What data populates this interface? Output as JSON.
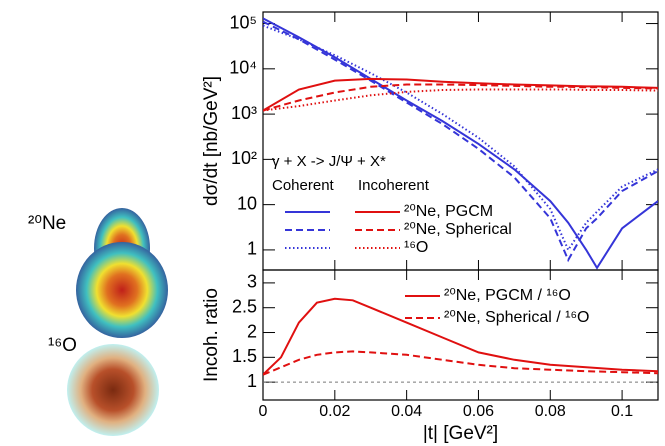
{
  "images": [
    "²⁰Ne",
    "¹⁶O"
  ],
  "chart_data": [
    {
      "type": "line",
      "ylabel": "dσ/dt [nb/GeV²]",
      "yscale": "log",
      "annotations": [
        "γ + X -> J/Ψ + X*"
      ],
      "legend_headers": [
        "Coherent",
        "Incoherent"
      ],
      "xlim": [
        0,
        0.11
      ],
      "xticks": [
        0,
        0.02,
        0.04,
        0.06,
        0.08,
        0.1
      ],
      "show_xtick_labels": false,
      "ylim": [
        0.36,
        180000
      ],
      "yticks": [
        1,
        10,
        {
          "value": 100,
          "label": "10²"
        },
        {
          "value": 1000,
          "label": "10³"
        },
        {
          "value": 10000,
          "label": "10⁴"
        },
        {
          "value": 100000,
          "label": "10⁵"
        }
      ],
      "x": [
        0,
        0.01,
        0.02,
        0.03,
        0.04,
        0.05,
        0.06,
        0.07,
        0.08,
        0.085,
        0.09,
        0.093,
        0.1,
        0.11
      ],
      "series": [
        {
          "color": "#3535d8",
          "style": "solid",
          "values": [
            130000,
            50000,
            18000,
            6000,
            2000,
            700,
            220,
            60,
            12,
            4,
            1,
            0.4,
            3,
            12
          ]
        },
        {
          "color": "#3535d8",
          "style": "dashed",
          "values": [
            110000,
            45000,
            16000,
            5500,
            1800,
            600,
            170,
            40,
            5,
            0.6,
            3,
            5,
            20,
            55
          ]
        },
        {
          "color": "#3535d8",
          "style": "dotted",
          "values": [
            90000,
            45000,
            20000,
            8000,
            3000,
            1000,
            300,
            70,
            8,
            1,
            4,
            7,
            25,
            60
          ]
        },
        {
          "name": "²⁰Ne, PGCM",
          "color": "#e01010",
          "style": "solid",
          "values": [
            1200,
            3500,
            5500,
            6000,
            5800,
            5200,
            4800,
            4500,
            4300,
            4200,
            4100,
            4100,
            4000,
            3800
          ]
        },
        {
          "name": "²⁰Ne, Spherical",
          "color": "#e01010",
          "style": "dashed",
          "values": [
            1200,
            2000,
            3000,
            4000,
            4500,
            4500,
            4400,
            4200,
            4000,
            4000,
            3900,
            3900,
            3800,
            3700
          ]
        },
        {
          "name": "¹⁶O",
          "color": "#e01010",
          "style": "dotted",
          "values": [
            1200,
            1500,
            2000,
            2600,
            3100,
            3400,
            3500,
            3500,
            3500,
            3500,
            3400,
            3400,
            3400,
            3300
          ]
        }
      ]
    },
    {
      "type": "line",
      "ylabel": "Incoh. ratio",
      "xlabel": "|t| [GeV²]",
      "yscale": "linear",
      "xlim": [
        0,
        0.11
      ],
      "xticks": [
        0,
        0.02,
        0.04,
        0.06,
        0.08,
        0.1
      ],
      "show_xtick_labels": true,
      "ylim": [
        0.64,
        3.26
      ],
      "yticks": [
        1,
        1.5,
        2,
        2.5,
        3
      ],
      "reference_line": 1,
      "x": [
        0,
        0.005,
        0.01,
        0.015,
        0.02,
        0.025,
        0.03,
        0.04,
        0.05,
        0.06,
        0.07,
        0.08,
        0.09,
        0.1,
        0.11
      ],
      "series": [
        {
          "name": "²⁰Ne, PGCM / ¹⁶O",
          "color": "#e01010",
          "style": "solid",
          "values": [
            1.15,
            1.5,
            2.2,
            2.6,
            2.68,
            2.65,
            2.5,
            2.2,
            1.9,
            1.6,
            1.45,
            1.35,
            1.3,
            1.25,
            1.22
          ]
        },
        {
          "name": "²⁰Ne, Spherical / ¹⁶O",
          "color": "#e01010",
          "style": "dashed",
          "values": [
            1.15,
            1.3,
            1.45,
            1.55,
            1.6,
            1.62,
            1.6,
            1.55,
            1.45,
            1.35,
            1.28,
            1.25,
            1.22,
            1.2,
            1.18
          ]
        }
      ]
    }
  ]
}
